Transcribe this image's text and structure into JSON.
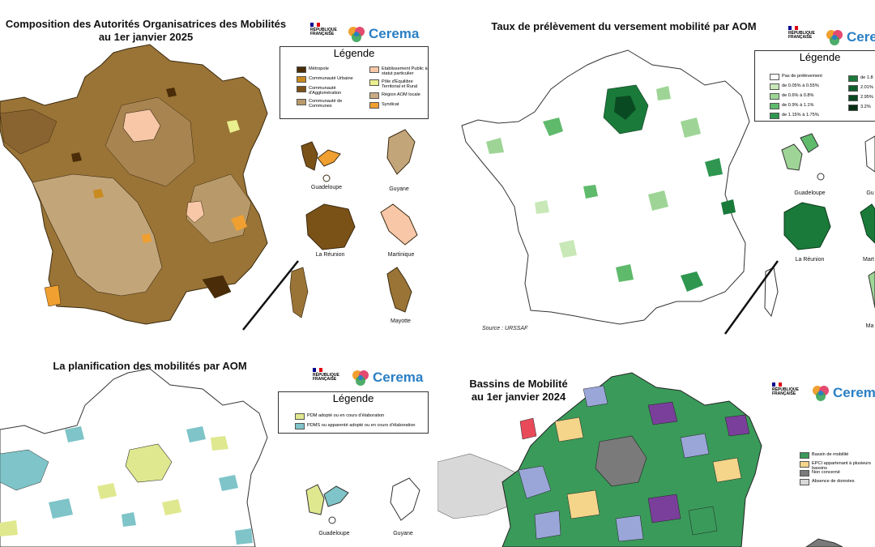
{
  "panels": {
    "p1": {
      "title_l1": "Composition des Autorités Organisatrices des Mobilités",
      "title_l2": "au 1er janvier 2025",
      "legend_title": "Légende",
      "legend": [
        "Métropole",
        "Communauté Urbaine",
        "Communauté d'Agglomération",
        "Communauté de Communes",
        "Etablissement Public à statut particulier",
        "Pôle d'Equilibre Territorial et Rural",
        "Région AOM locale",
        "Syndicat"
      ],
      "legend_colors": [
        "#4a2c08",
        "#c98a1e",
        "#7a5218",
        "#b89a6a",
        "#f7c7a8",
        "#e9ef8e",
        "#c9ab86",
        "#f0a030"
      ],
      "overseas": [
        "Guadeloupe",
        "Guyane",
        "La Réunion",
        "Martinique",
        "Mayotte"
      ]
    },
    "p2": {
      "title": "Taux de prélèvement du versement mobilité par AOM",
      "legend_title": "Légende",
      "legend": [
        "Pas de prélèvement",
        "de 0.05% à 0.55%",
        "de 0.6% à 0.8%",
        "de 0.9% à 1.1%",
        "de 1.15% à 1.75%",
        "de 1.8",
        "2.01%",
        "2.95%",
        "3.2%"
      ],
      "legend_colors": [
        "#ffffff",
        "#c8e8b8",
        "#9ed596",
        "#5fba6c",
        "#2f9650",
        "#1a7a3a",
        "#0f5f2c",
        "#0a4a22",
        "#052e15"
      ],
      "overseas": [
        "Guadeloupe",
        "Gu",
        "La Réunion",
        "Mart",
        "Ma"
      ],
      "source": "Source : URSSAF"
    },
    "p3": {
      "title": "La planification des mobilités par AOM",
      "legend_title": "Légende",
      "legend": [
        "PDM adopté ou en cours d'élaboration",
        "PDMS ou apparenté adopté ou en cours d'élaboration"
      ],
      "legend_colors": [
        "#dfe88e",
        "#7ec4c8"
      ],
      "overseas": [
        "Guadeloupe",
        "Guyane"
      ]
    },
    "p4": {
      "title_l1": "Bassins de Mobilité",
      "title_l2": "au 1er janvier 2024",
      "legend": [
        "Bassin de mobilité",
        "EPCI appartenant à plusieurs bassins",
        "Non concerné",
        "Absence de données"
      ],
      "legend_colors": [
        "#3a9a5a",
        "#f5d58a",
        "#7a7a7a",
        "#d8d8d8"
      ]
    }
  },
  "logo": {
    "rf_l1": "RÉPUBLIQUE",
    "rf_l2": "FRANÇAISE",
    "cerema": "Cerema",
    "cerema_short": "Cerem",
    "cerema_short2": "Cere"
  },
  "colors": {
    "flag_blue": "#000091",
    "flag_red": "#e1000f",
    "cerema_blue": "#2a7fc4"
  }
}
